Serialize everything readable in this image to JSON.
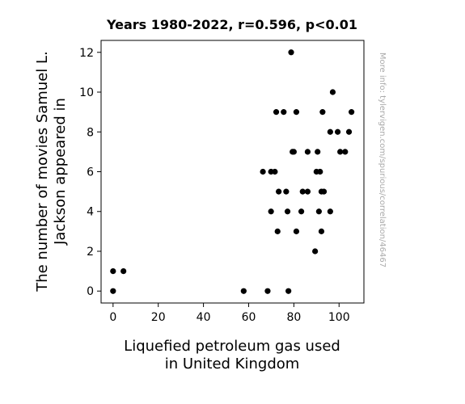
{
  "chart_data": {
    "type": "scatter",
    "title": "Years 1980-2022, r=0.596, p<0.01",
    "xlabel_lines": [
      "Liquefied petroleum gas used",
      "in United Kingdom"
    ],
    "ylabel_lines": [
      "The number of movies Samuel L.",
      "Jackson appeared in"
    ],
    "watermark": "More info: tylervigen.com/spurious/correlation/46467",
    "xlim": [
      -5.3,
      111
    ],
    "ylim": [
      -0.6,
      12.6
    ],
    "xticks": [
      0,
      20,
      40,
      60,
      80,
      100
    ],
    "yticks": [
      0,
      2,
      4,
      6,
      8,
      10,
      12
    ],
    "grid": false,
    "marker_color": "#000000",
    "points": [
      {
        "x": 0,
        "y": 0
      },
      {
        "x": 0,
        "y": 1
      },
      {
        "x": 4.6,
        "y": 1
      },
      {
        "x": 57.8,
        "y": 0
      },
      {
        "x": 68.4,
        "y": 0
      },
      {
        "x": 77.6,
        "y": 0
      },
      {
        "x": 66.3,
        "y": 6
      },
      {
        "x": 69.9,
        "y": 6
      },
      {
        "x": 71.6,
        "y": 6
      },
      {
        "x": 69.9,
        "y": 4
      },
      {
        "x": 72.2,
        "y": 9
      },
      {
        "x": 75.5,
        "y": 9
      },
      {
        "x": 72.8,
        "y": 3
      },
      {
        "x": 73.3,
        "y": 5
      },
      {
        "x": 76.6,
        "y": 5
      },
      {
        "x": 77.2,
        "y": 4
      },
      {
        "x": 78.8,
        "y": 12
      },
      {
        "x": 79.4,
        "y": 7
      },
      {
        "x": 80.0,
        "y": 7
      },
      {
        "x": 81.1,
        "y": 9
      },
      {
        "x": 81.1,
        "y": 3
      },
      {
        "x": 83.3,
        "y": 4
      },
      {
        "x": 83.9,
        "y": 5
      },
      {
        "x": 86.1,
        "y": 5
      },
      {
        "x": 86.1,
        "y": 7
      },
      {
        "x": 89.4,
        "y": 2
      },
      {
        "x": 90.0,
        "y": 6
      },
      {
        "x": 90.5,
        "y": 7
      },
      {
        "x": 91.1,
        "y": 4
      },
      {
        "x": 91.6,
        "y": 6
      },
      {
        "x": 92.2,
        "y": 5
      },
      {
        "x": 92.2,
        "y": 3
      },
      {
        "x": 92.7,
        "y": 9
      },
      {
        "x": 93.3,
        "y": 5
      },
      {
        "x": 96.1,
        "y": 4
      },
      {
        "x": 96.1,
        "y": 8
      },
      {
        "x": 97.2,
        "y": 10
      },
      {
        "x": 99.4,
        "y": 8
      },
      {
        "x": 100.5,
        "y": 7
      },
      {
        "x": 102.7,
        "y": 7
      },
      {
        "x": 104.4,
        "y": 8
      },
      {
        "x": 105.5,
        "y": 9
      }
    ]
  }
}
